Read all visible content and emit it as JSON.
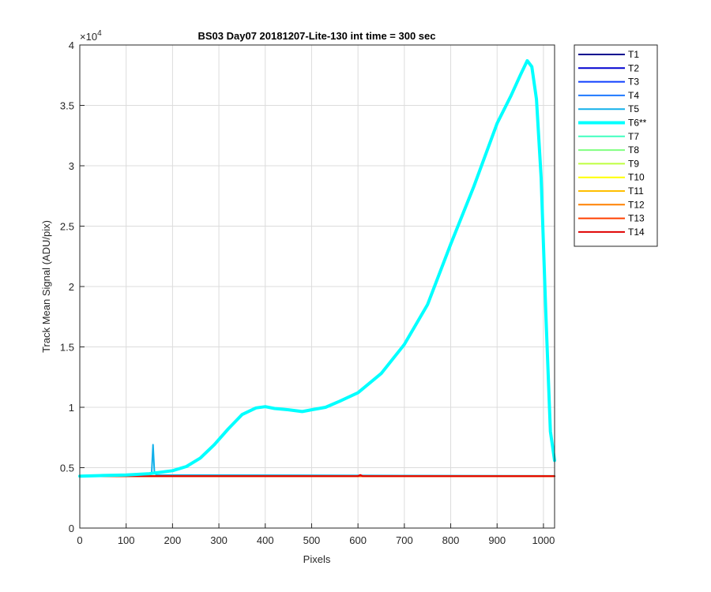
{
  "chart_data": {
    "type": "line",
    "title": "BS03 Day07 20181207-Lite-130 int time = 300 sec",
    "xlabel": "Pixels",
    "ylabel": "Track Mean Signal (ADU/pix)",
    "xlim": [
      0,
      1024
    ],
    "ylim": [
      0,
      40000
    ],
    "x_ticks": [
      0,
      100,
      200,
      300,
      400,
      500,
      600,
      700,
      800,
      900,
      1000
    ],
    "y_ticks": [
      0,
      5000,
      10000,
      15000,
      20000,
      25000,
      30000,
      35000,
      40000
    ],
    "y_tick_labels": [
      "0",
      "0.5",
      "1",
      "1.5",
      "2",
      "2.5",
      "3",
      "3.5",
      "4"
    ],
    "y_exponent_base": "×10",
    "y_exponent_power": "4",
    "grid": true,
    "legend_position": "outside-right",
    "series": [
      {
        "name": "T1",
        "color": "#00008f",
        "highlight": false,
        "points": [
          [
            0,
            4300
          ],
          [
            1024,
            4300
          ]
        ]
      },
      {
        "name": "T2",
        "color": "#0000d0",
        "highlight": false,
        "points": [
          [
            0,
            4300
          ],
          [
            1024,
            4300
          ]
        ]
      },
      {
        "name": "T3",
        "color": "#0f3fff",
        "highlight": false,
        "points": [
          [
            0,
            4300
          ],
          [
            1024,
            4300
          ]
        ]
      },
      {
        "name": "T4",
        "color": "#1e78ff",
        "highlight": false,
        "points": [
          [
            0,
            4300
          ],
          [
            1024,
            4300
          ]
        ]
      },
      {
        "name": "T5",
        "color": "#12b0ea",
        "highlight": false,
        "points": [
          [
            0,
            4320
          ],
          [
            150,
            4380
          ],
          [
            155,
            4600
          ],
          [
            158,
            6900
          ],
          [
            161,
            4600
          ],
          [
            165,
            4400
          ],
          [
            1024,
            4320
          ]
        ]
      },
      {
        "name": "T6**",
        "color": "#00ffff",
        "highlight": true,
        "points": [
          [
            0,
            4300
          ],
          [
            50,
            4350
          ],
          [
            100,
            4400
          ],
          [
            150,
            4500
          ],
          [
            200,
            4750
          ],
          [
            230,
            5100
          ],
          [
            260,
            5800
          ],
          [
            290,
            6900
          ],
          [
            320,
            8200
          ],
          [
            350,
            9400
          ],
          [
            380,
            9950
          ],
          [
            400,
            10050
          ],
          [
            420,
            9900
          ],
          [
            450,
            9800
          ],
          [
            480,
            9650
          ],
          [
            500,
            9800
          ],
          [
            530,
            10000
          ],
          [
            560,
            10500
          ],
          [
            600,
            11200
          ],
          [
            650,
            12800
          ],
          [
            700,
            15200
          ],
          [
            750,
            18500
          ],
          [
            800,
            23500
          ],
          [
            850,
            28300
          ],
          [
            900,
            33500
          ],
          [
            930,
            35800
          ],
          [
            950,
            37500
          ],
          [
            965,
            38700
          ],
          [
            975,
            38200
          ],
          [
            985,
            35500
          ],
          [
            995,
            29000
          ],
          [
            1005,
            18000
          ],
          [
            1015,
            8000
          ],
          [
            1024,
            5600
          ]
        ]
      },
      {
        "name": "T7",
        "color": "#40ffbf",
        "highlight": false,
        "points": [
          [
            0,
            4300
          ],
          [
            1024,
            4300
          ]
        ]
      },
      {
        "name": "T8",
        "color": "#80ff80",
        "highlight": false,
        "points": [
          [
            0,
            4300
          ],
          [
            1024,
            4300
          ]
        ]
      },
      {
        "name": "T9",
        "color": "#bfff40",
        "highlight": false,
        "points": [
          [
            0,
            4300
          ],
          [
            1024,
            4300
          ]
        ]
      },
      {
        "name": "T10",
        "color": "#ffff00",
        "highlight": false,
        "points": [
          [
            0,
            4300
          ],
          [
            1024,
            4300
          ]
        ]
      },
      {
        "name": "T11",
        "color": "#ffbf00",
        "highlight": false,
        "points": [
          [
            0,
            4300
          ],
          [
            1024,
            4300
          ]
        ]
      },
      {
        "name": "T12",
        "color": "#ff8000",
        "highlight": false,
        "points": [
          [
            0,
            4300
          ],
          [
            1024,
            4300
          ]
        ]
      },
      {
        "name": "T13",
        "color": "#ff4000",
        "highlight": false,
        "points": [
          [
            0,
            4300
          ],
          [
            1024,
            4300
          ]
        ]
      },
      {
        "name": "T14",
        "color": "#e00000",
        "highlight": false,
        "points": [
          [
            0,
            4300
          ],
          [
            600,
            4300
          ],
          [
            605,
            4400
          ],
          [
            610,
            4300
          ],
          [
            1024,
            4300
          ]
        ]
      }
    ]
  }
}
